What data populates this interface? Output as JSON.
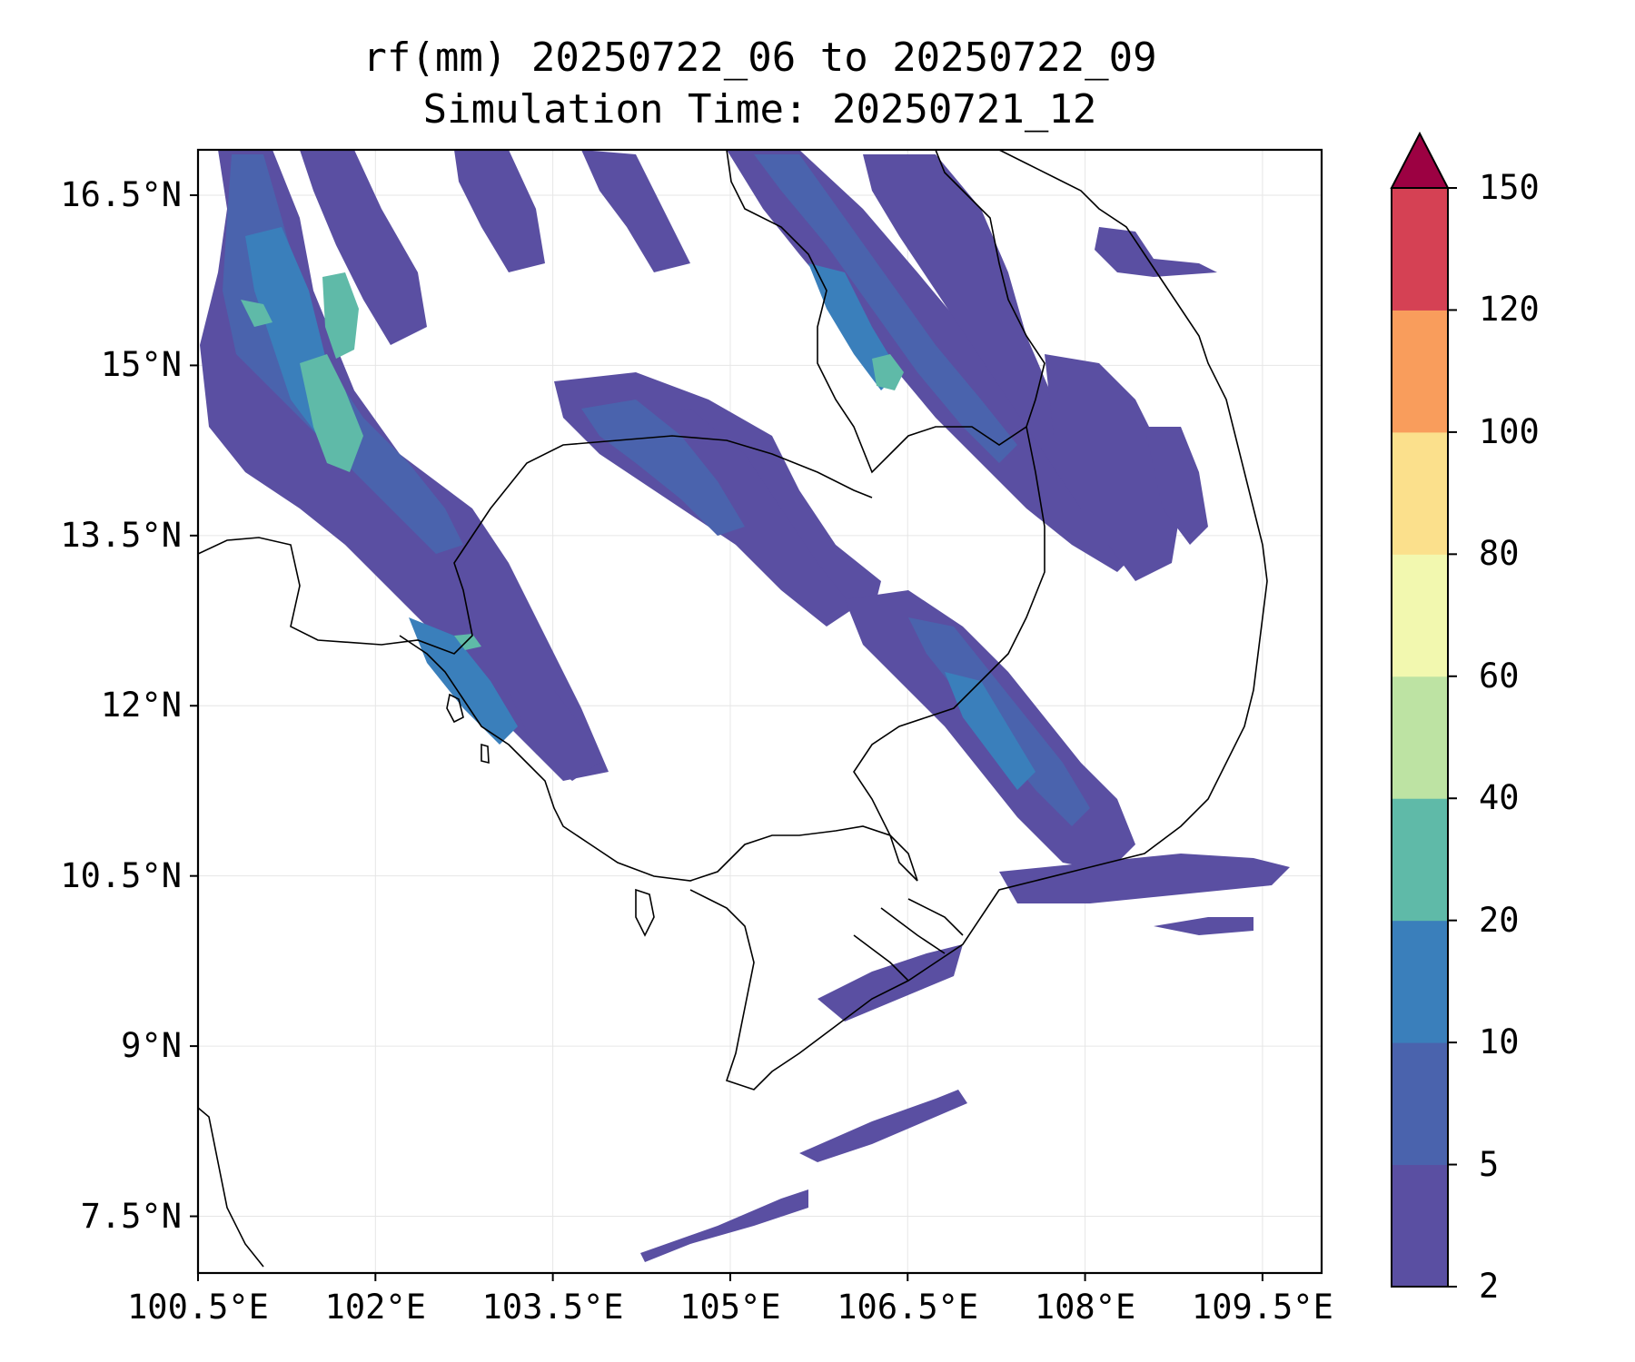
{
  "chart_data": {
    "type": "heatmap",
    "title_line1": "rf(mm) 20250722_06 to 20250722_09",
    "title_line2": "Simulation Time: 20250721_12",
    "x_ticks": [
      "100.5°E",
      "102°E",
      "103.5°E",
      "105°E",
      "106.5°E",
      "108°E",
      "109.5°E"
    ],
    "y_ticks": [
      "16.5°N",
      "15°N",
      "13.5°N",
      "12°N",
      "10.5°N",
      "9°N",
      "7.5°N"
    ],
    "x_tick_values": [
      100.5,
      102,
      103.5,
      105,
      106.5,
      108,
      109.5
    ],
    "y_tick_values": [
      16.5,
      15,
      13.5,
      12,
      10.5,
      9,
      7.5
    ],
    "xlim": [
      100.5,
      110.0
    ],
    "ylim": [
      7.0,
      16.9
    ],
    "grid": true,
    "colorbar": {
      "levels": [
        2,
        5,
        10,
        20,
        40,
        60,
        80,
        100,
        120,
        150
      ],
      "tick_labels": [
        "2",
        "5",
        "10",
        "20",
        "40",
        "60",
        "80",
        "100",
        "120",
        "150"
      ],
      "colors": [
        "#5a4fa2",
        "#4a63ad",
        "#3a7fbb",
        "#5fbaa8",
        "#bde3a3",
        "#f2f8af",
        "#fbe08c",
        "#f99d5c",
        "#d54154"
      ],
      "extend_color": "#9c0142",
      "extend": "max"
    }
  }
}
